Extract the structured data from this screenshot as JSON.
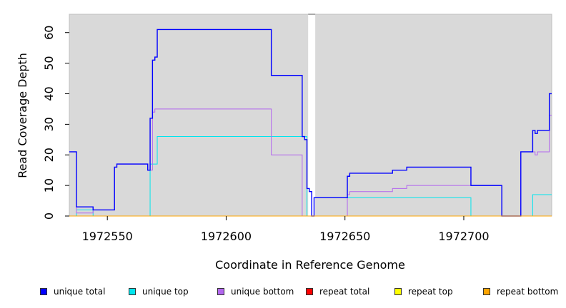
{
  "chart_data": {
    "type": "line",
    "xlabel": "Coordinate in Reference Genome",
    "ylabel": "Read Coverage Depth",
    "xlim": [
      1972534,
      1972737
    ],
    "ylim": [
      0,
      66
    ],
    "x_ticks": [
      1972550,
      1972600,
      1972650,
      1972700
    ],
    "x_tick_labels": [
      "1972550",
      "1972600",
      "1972650",
      "1972700"
    ],
    "y_ticks": [
      0,
      10,
      20,
      30,
      40,
      50,
      60
    ],
    "y_tick_labels": [
      "0",
      "10",
      "20",
      "30",
      "40",
      "50",
      "60"
    ],
    "background": "#d9d9d9",
    "gap_region": [
      1972634.5,
      1972637.5
    ],
    "legend_position": "bottom",
    "series": [
      {
        "name": "unique total",
        "color": "#0000ff",
        "x": [
          1972534,
          1972536,
          1972537,
          1972538,
          1972543,
          1972544,
          1972552,
          1972553,
          1972554,
          1972555,
          1972567,
          1972568,
          1972569,
          1972570,
          1972571,
          1972581,
          1972615,
          1972619,
          1972631,
          1972632,
          1972633,
          1972634,
          1972635,
          1972636,
          1972637,
          1972650,
          1972651,
          1972652,
          1972661,
          1972670,
          1972676,
          1972703,
          1972716,
          1972724,
          1972728,
          1972729,
          1972730,
          1972731,
          1972732,
          1972733,
          1972736,
          1972737
        ],
        "y": [
          21,
          21,
          3,
          3,
          3,
          2,
          2,
          16,
          17,
          17,
          15,
          32,
          51,
          52,
          61,
          61,
          61,
          46,
          46,
          26,
          25,
          9,
          8,
          0,
          6,
          6,
          13,
          14,
          14,
          15,
          16,
          10,
          0,
          21,
          21,
          28,
          27,
          28,
          28,
          28,
          40,
          40
        ]
      },
      {
        "name": "unique top",
        "color": "#00e5ee",
        "x": [
          1972534,
          1972536,
          1972537,
          1972538,
          1972543,
          1972544,
          1972552,
          1972553,
          1972567,
          1972568,
          1972569,
          1972570,
          1972571,
          1972581,
          1972615,
          1972619,
          1972631,
          1972632,
          1972633,
          1972634,
          1972635,
          1972636,
          1972637,
          1972651,
          1972652,
          1972661,
          1972703,
          1972716,
          1972724,
          1972728,
          1972729,
          1972737
        ],
        "y": [
          0,
          0,
          2,
          2,
          2,
          0,
          0,
          0,
          0,
          17,
          17,
          17,
          26,
          26,
          26,
          26,
          26,
          26,
          26,
          0,
          0,
          0,
          6,
          6,
          6,
          6,
          0,
          0,
          0,
          0,
          7,
          7
        ]
      },
      {
        "name": "unique bottom",
        "color": "#b266ee",
        "x": [
          1972534,
          1972536,
          1972537,
          1972538,
          1972543,
          1972544,
          1972552,
          1972553,
          1972554,
          1972555,
          1972567,
          1972568,
          1972569,
          1972570,
          1972571,
          1972581,
          1972615,
          1972619,
          1972631,
          1972632,
          1972633,
          1972634,
          1972635,
          1972636,
          1972637,
          1972650,
          1972651,
          1972652,
          1972661,
          1972670,
          1972676,
          1972703,
          1972716,
          1972724,
          1972728,
          1972729,
          1972730,
          1972731,
          1972732,
          1972733,
          1972736,
          1972737
        ],
        "y": [
          21,
          21,
          1,
          1,
          1,
          2,
          2,
          16,
          17,
          17,
          15,
          15,
          34,
          35,
          35,
          35,
          35,
          20,
          20,
          0,
          0,
          0,
          0,
          0,
          0,
          0,
          7,
          8,
          8,
          9,
          10,
          10,
          0,
          21,
          21,
          21,
          20,
          21,
          21,
          21,
          33,
          33
        ]
      },
      {
        "name": "repeat total",
        "color": "#ff0000",
        "x": [
          1972534,
          1972737
        ],
        "y": [
          0,
          0
        ]
      },
      {
        "name": "repeat top",
        "color": "#ffff00",
        "x": [
          1972534,
          1972737
        ],
        "y": [
          0,
          0
        ]
      },
      {
        "name": "repeat bottom",
        "color": "#ffa500",
        "x": [
          1972534,
          1972737
        ],
        "y": [
          0,
          0
        ]
      }
    ]
  }
}
